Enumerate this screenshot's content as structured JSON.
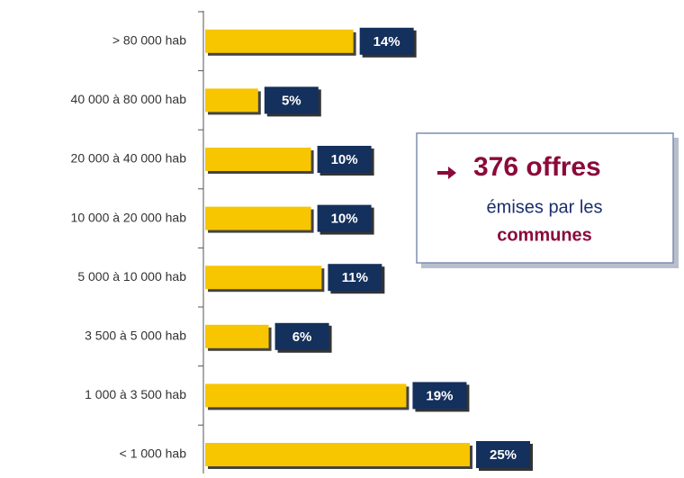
{
  "chart_data": {
    "type": "hbar",
    "categories": [
      "> 80 000 hab",
      "40 000 à 80 000 hab",
      "20 000 à 40 000 hab",
      "10 000 à 20 000 hab",
      "5 000 à 10 000 hab",
      "3 500 à 5 000 hab",
      "1 000 à 3 500 hab",
      "< 1 000 hab"
    ],
    "values": [
      14,
      5,
      10,
      10,
      11,
      6,
      19,
      25
    ],
    "value_labels": [
      "14%",
      "5%",
      "10%",
      "10%",
      "11%",
      "6%",
      "19%",
      "25%"
    ],
    "color": "#f7c600",
    "label_color": "#14305c",
    "annotation": {
      "headline": "376 offres",
      "line1": "émises par les",
      "line2": "communes"
    }
  }
}
